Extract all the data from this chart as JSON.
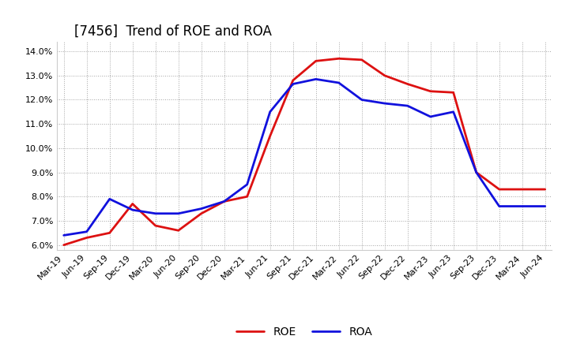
{
  "title": "[7456]  Trend of ROE and ROA",
  "x_labels": [
    "Mar-19",
    "Jun-19",
    "Sep-19",
    "Dec-19",
    "Mar-20",
    "Jun-20",
    "Sep-20",
    "Dec-20",
    "Mar-21",
    "Jun-21",
    "Sep-21",
    "Dec-21",
    "Mar-22",
    "Jun-22",
    "Sep-22",
    "Dec-22",
    "Mar-23",
    "Jun-23",
    "Sep-23",
    "Dec-23",
    "Mar-24",
    "Jun-24"
  ],
  "roe": [
    6.0,
    6.3,
    6.5,
    7.7,
    6.8,
    6.6,
    7.3,
    7.8,
    8.0,
    10.5,
    12.8,
    13.6,
    13.7,
    13.65,
    13.0,
    12.65,
    12.35,
    12.3,
    9.0,
    8.3,
    8.3,
    8.3
  ],
  "roa": [
    6.4,
    6.55,
    7.9,
    7.45,
    7.3,
    7.3,
    7.5,
    7.8,
    8.5,
    11.5,
    12.65,
    12.85,
    12.7,
    12.0,
    11.85,
    11.75,
    11.3,
    11.5,
    9.0,
    7.6,
    7.6,
    7.6
  ],
  "roe_color": "#dd1111",
  "roa_color": "#1111dd",
  "ylim": [
    5.8,
    14.4
  ],
  "yticks": [
    6.0,
    7.0,
    8.0,
    9.0,
    10.0,
    11.0,
    12.0,
    13.0,
    14.0
  ],
  "background_color": "#ffffff",
  "plot_bg_color": "#ffffff",
  "grid_color": "#999999",
  "title_fontsize": 12,
  "legend_fontsize": 10,
  "tick_fontsize": 8,
  "linewidth": 2.0
}
